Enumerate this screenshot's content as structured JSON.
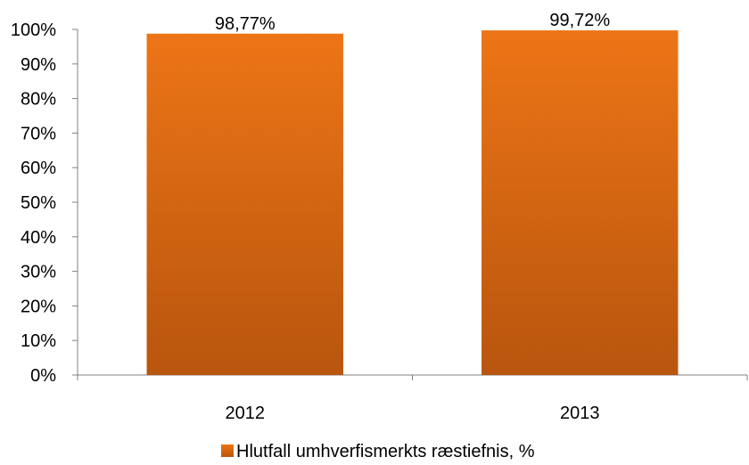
{
  "chart_data": {
    "type": "bar",
    "categories": [
      "2012",
      "2013"
    ],
    "series": [
      {
        "name": "Hlutfall umhverfismerkts ræstiefnis, %",
        "values": [
          98.77,
          99.72
        ],
        "value_labels": [
          "98,77%",
          "99,72%"
        ]
      }
    ],
    "ylim": [
      0,
      100
    ],
    "yticks": [
      "0%",
      "10%",
      "20%",
      "30%",
      "40%",
      "50%",
      "60%",
      "70%",
      "80%",
      "90%",
      "100%"
    ],
    "grid": false,
    "legend": "bottom-center",
    "colors": {
      "bar_top": "#ED7516",
      "bar_bottom": "#B8550E",
      "axis": "#808080"
    }
  }
}
